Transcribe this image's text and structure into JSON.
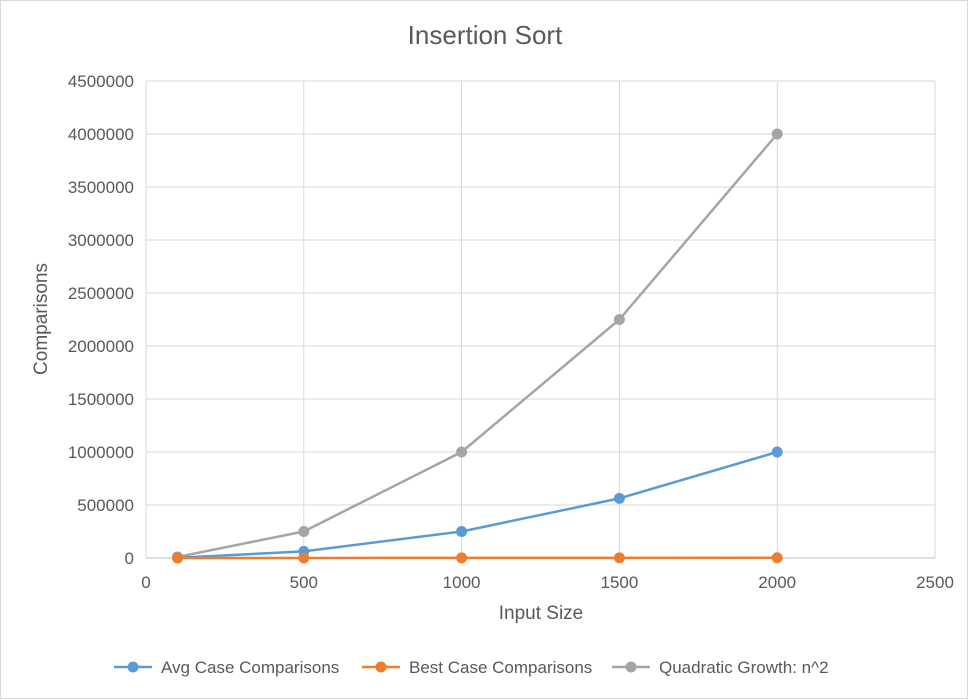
{
  "chart_data": {
    "type": "scatter",
    "title": "Insertion Sort",
    "xlabel": "Input Size",
    "ylabel": "Comparisons",
    "xlim": [
      0,
      2500
    ],
    "ylim": [
      0,
      4500000
    ],
    "x_ticks": [
      "0",
      "500",
      "1000",
      "1500",
      "2000",
      "2500"
    ],
    "y_ticks": [
      "0",
      "500000",
      "1000000",
      "1500000",
      "2000000",
      "2500000",
      "3000000",
      "3500000",
      "4000000",
      "4500000"
    ],
    "grid": true,
    "legend_position": "bottom",
    "series": [
      {
        "name": "Avg Case Comparisons",
        "color": "#5b9bd5",
        "x": [
          100,
          500,
          1000,
          1500,
          2000
        ],
        "y": [
          2500,
          62500,
          250000,
          562500,
          1000000
        ]
      },
      {
        "name": "Best Case Comparisons",
        "color": "#ed7d31",
        "x": [
          100,
          500,
          1000,
          1500,
          2000
        ],
        "y": [
          100,
          500,
          1000,
          1500,
          2000
        ]
      },
      {
        "name": "Quadratic Growth: n^2",
        "color": "#a5a5a5",
        "x": [
          100,
          500,
          1000,
          1500,
          2000
        ],
        "y": [
          10000,
          250000,
          1000000,
          2250000,
          4000000
        ]
      }
    ]
  }
}
